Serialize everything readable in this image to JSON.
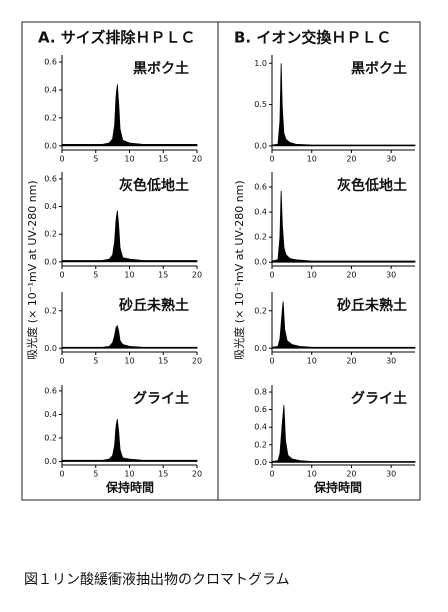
{
  "headers": [
    "A. サイズ排除ＨＰＬＣ",
    "B. イオン交換ＨＰＬＣ"
  ],
  "y_axis_label": "吸光度 (× 10⁻¹mV at UV-280 nm)",
  "x_axis_label": "保持時間",
  "caption": "図１リン酸緩衝液抽出物のクロマトグラム",
  "chart_data": [
    {
      "type": "area",
      "title": "黒ボク土",
      "color": "#000000",
      "x": [
        0,
        2,
        4,
        6,
        7,
        7.5,
        7.8,
        8,
        8.2,
        8.4,
        8.6,
        9,
        10,
        12,
        15,
        20
      ],
      "values": [
        0.01,
        0.01,
        0.01,
        0.01,
        0.02,
        0.05,
        0.15,
        0.35,
        0.44,
        0.3,
        0.12,
        0.04,
        0.02,
        0.01,
        0.01,
        0.01
      ],
      "xlim": [
        0,
        20
      ],
      "ylim": [
        -0.03,
        0.65
      ],
      "xticks": [
        0,
        5,
        10,
        15,
        20
      ],
      "yticks": [
        {
          "value": 0,
          "label": "0.0"
        },
        0.2,
        0.4,
        0.6
      ]
    },
    {
      "type": "area",
      "title": "灰色低地土",
      "color": "#000000",
      "x": [
        0,
        2,
        4,
        6,
        7,
        7.5,
        7.8,
        8,
        8.2,
        8.4,
        8.6,
        9,
        10,
        12,
        15,
        20
      ],
      "values": [
        0.01,
        0.01,
        0.01,
        0.01,
        0.02,
        0.05,
        0.15,
        0.3,
        0.37,
        0.26,
        0.1,
        0.03,
        0.02,
        0.01,
        0.01,
        0.01
      ],
      "xlim": [
        0,
        20
      ],
      "ylim": [
        -0.03,
        0.65
      ],
      "xticks": [
        0,
        5,
        10,
        15,
        20
      ],
      "yticks": [
        {
          "value": 0,
          "label": "0.0"
        },
        0.2,
        0.4,
        0.6
      ]
    },
    {
      "type": "area",
      "title": "砂丘未熟土",
      "color": "#000000",
      "x": [
        0,
        2,
        4,
        6,
        7,
        7.5,
        7.8,
        8,
        8.2,
        8.4,
        8.6,
        9,
        10,
        12,
        15,
        20
      ],
      "values": [
        0.005,
        0.005,
        0.005,
        0.005,
        0.01,
        0.03,
        0.07,
        0.11,
        0.12,
        0.09,
        0.04,
        0.02,
        0.01,
        0.005,
        0.005,
        0.005
      ],
      "xlim": [
        0,
        20
      ],
      "ylim": [
        -0.02,
        0.3
      ],
      "xticks": [
        0,
        5,
        10,
        15,
        20
      ],
      "yticks": [
        {
          "value": 0,
          "label": "0.0"
        },
        0.2
      ]
    },
    {
      "type": "area",
      "title": "グライ土",
      "color": "#000000",
      "x": [
        0,
        2,
        4,
        6,
        7,
        7.5,
        7.8,
        8,
        8.2,
        8.4,
        8.6,
        9,
        10,
        12,
        15,
        20
      ],
      "values": [
        0.01,
        0.01,
        0.01,
        0.01,
        0.02,
        0.05,
        0.14,
        0.3,
        0.36,
        0.25,
        0.1,
        0.03,
        0.02,
        0.01,
        0.01,
        0.01
      ],
      "xlim": [
        0,
        20
      ],
      "ylim": [
        -0.03,
        0.65
      ],
      "xticks": [
        0,
        5,
        10,
        15,
        20
      ],
      "yticks": [
        {
          "value": 0,
          "label": "0.0"
        },
        0.2,
        0.4,
        0.6
      ]
    },
    {
      "type": "area",
      "title": "黒ボク土",
      "color": "#000000",
      "x": [
        0,
        1.5,
        2,
        2.3,
        2.6,
        3,
        3.5,
        4.5,
        6,
        10,
        20,
        30,
        36
      ],
      "values": [
        0.01,
        0.02,
        0.3,
        1.0,
        0.45,
        0.15,
        0.08,
        0.04,
        0.02,
        0.01,
        0.01,
        0.01,
        0.01
      ],
      "xlim": [
        0,
        36
      ],
      "ylim": [
        -0.05,
        1.1
      ],
      "xticks": [
        0,
        10,
        20,
        30
      ],
      "yticks": [
        {
          "value": 0,
          "label": "0.0"
        },
        0.5,
        {
          "value": 1,
          "label": "1.0"
        }
      ]
    },
    {
      "type": "area",
      "title": "灰色低地土",
      "color": "#000000",
      "x": [
        0,
        1.5,
        2,
        2.3,
        2.6,
        3,
        3.5,
        4.5,
        6,
        10,
        20,
        30,
        36
      ],
      "values": [
        0.01,
        0.02,
        0.2,
        0.57,
        0.3,
        0.12,
        0.06,
        0.03,
        0.02,
        0.01,
        0.01,
        0.01,
        0.01
      ],
      "xlim": [
        0,
        36
      ],
      "ylim": [
        -0.03,
        0.72
      ],
      "xticks": [
        0,
        10,
        20,
        30
      ],
      "yticks": [
        {
          "value": 0,
          "label": "0.0"
        },
        0.2,
        0.4,
        0.6
      ]
    },
    {
      "type": "area",
      "title": "砂丘未熟土",
      "color": "#000000",
      "x": [
        0,
        1.5,
        2,
        2.5,
        2.8,
        3.2,
        3.8,
        5,
        7,
        10,
        20,
        30,
        36
      ],
      "values": [
        0.005,
        0.01,
        0.05,
        0.18,
        0.25,
        0.1,
        0.04,
        0.02,
        0.01,
        0.005,
        0.005,
        0.005,
        0.005
      ],
      "xlim": [
        0,
        36
      ],
      "ylim": [
        -0.02,
        0.3
      ],
      "xticks": [
        0,
        10,
        20,
        30
      ],
      "yticks": [
        {
          "value": 0,
          "label": "0.0"
        },
        0.2
      ]
    },
    {
      "type": "area",
      "title": "グライ土",
      "color": "#000000",
      "x": [
        0,
        1.5,
        2,
        2.6,
        3,
        3.4,
        4,
        5,
        7,
        10,
        20,
        30,
        36
      ],
      "values": [
        0.01,
        0.02,
        0.1,
        0.45,
        0.65,
        0.25,
        0.08,
        0.04,
        0.02,
        0.01,
        0.01,
        0.01,
        0.01
      ],
      "xlim": [
        0,
        36
      ],
      "ylim": [
        -0.03,
        0.88
      ],
      "xticks": [
        0,
        10,
        20,
        30
      ],
      "yticks": [
        {
          "value": 0,
          "label": "0.0"
        },
        0.2,
        0.4,
        0.6,
        0.8
      ]
    }
  ]
}
